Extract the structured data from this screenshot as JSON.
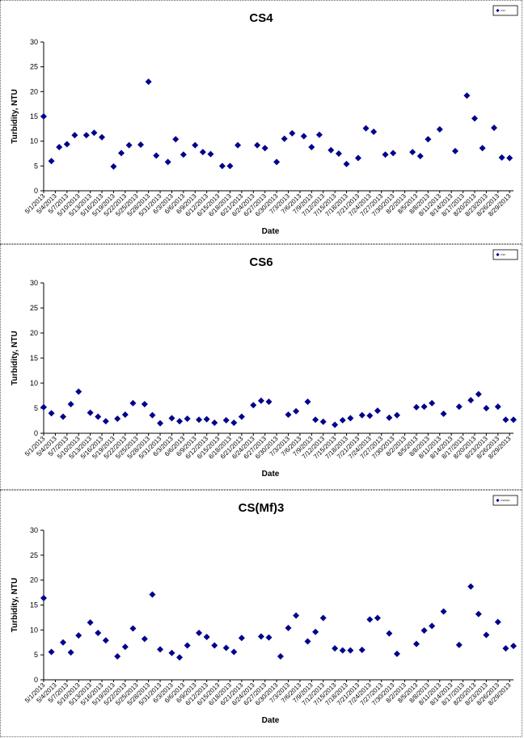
{
  "chart_data": [
    {
      "type": "scatter",
      "title": "CS4",
      "xlabel": "Date",
      "ylabel": "Turbidity, NTU",
      "ylim": [
        0,
        30
      ],
      "yticks": [
        0,
        5,
        10,
        15,
        20,
        25,
        30
      ],
      "xlim": [
        "5/1/2013",
        "8/30/2013"
      ],
      "xticks": [
        "5/1/2013",
        "5/4/2013",
        "5/7/2013",
        "5/10/2013",
        "5/13/2013",
        "5/16/2013",
        "5/19/2013",
        "5/22/2013",
        "5/25/2013",
        "5/28/2013",
        "5/31/2013",
        "6/3/2013",
        "6/6/2013",
        "6/9/2013",
        "6/12/2013",
        "6/15/2013",
        "6/18/2013",
        "6/21/2013",
        "6/24/2013",
        "6/27/2013",
        "6/30/2013",
        "7/3/2013",
        "7/6/2013",
        "7/9/2013",
        "7/12/2013",
        "7/15/2013",
        "7/18/2013",
        "7/21/2013",
        "7/24/2013",
        "7/27/2013",
        "7/30/2013",
        "8/2/2013",
        "8/5/2013",
        "8/8/2013",
        "8/11/2013",
        "8/14/2013",
        "8/17/2013",
        "8/20/2013",
        "8/23/2013",
        "8/26/2013",
        "8/29/2013"
      ],
      "legend": "top-right",
      "grid": false,
      "marker_color": "#00008B",
      "series": [
        {
          "name": "CS4",
          "points": [
            [
              "5/1/2013",
              15.0
            ],
            [
              "5/3/2013",
              6.0
            ],
            [
              "5/5/2013",
              8.8
            ],
            [
              "5/7/2013",
              9.4
            ],
            [
              "5/9/2013",
              11.2
            ],
            [
              "5/12/2013",
              11.2
            ],
            [
              "5/14/2013",
              11.7
            ],
            [
              "5/16/2013",
              10.8
            ],
            [
              "5/19/2013",
              4.9
            ],
            [
              "5/21/2013",
              7.6
            ],
            [
              "5/23/2013",
              9.2
            ],
            [
              "5/26/2013",
              9.3
            ],
            [
              "5/28/2013",
              22.0
            ],
            [
              "5/30/2013",
              7.1
            ],
            [
              "6/2/2013",
              5.8
            ],
            [
              "6/4/2013",
              10.4
            ],
            [
              "6/6/2013",
              7.3
            ],
            [
              "6/9/2013",
              9.2
            ],
            [
              "6/11/2013",
              7.8
            ],
            [
              "6/13/2013",
              7.4
            ],
            [
              "6/16/2013",
              5.0
            ],
            [
              "6/18/2013",
              5.0
            ],
            [
              "6/20/2013",
              9.2
            ],
            [
              "6/25/2013",
              9.2
            ],
            [
              "6/27/2013",
              8.6
            ],
            [
              "6/30/2013",
              5.8
            ],
            [
              "7/2/2013",
              10.5
            ],
            [
              "7/4/2013",
              11.6
            ],
            [
              "7/7/2013",
              11.0
            ],
            [
              "7/9/2013",
              8.8
            ],
            [
              "7/11/2013",
              11.3
            ],
            [
              "7/14/2013",
              8.2
            ],
            [
              "7/16/2013",
              7.5
            ],
            [
              "7/18/2013",
              5.4
            ],
            [
              "7/21/2013",
              6.6
            ],
            [
              "7/23/2013",
              12.6
            ],
            [
              "7/25/2013",
              11.9
            ],
            [
              "7/28/2013",
              7.3
            ],
            [
              "7/30/2013",
              7.6
            ],
            [
              "8/4/2013",
              7.8
            ],
            [
              "8/6/2013",
              7.0
            ],
            [
              "8/8/2013",
              10.4
            ],
            [
              "8/11/2013",
              12.4
            ],
            [
              "8/15/2013",
              8.0
            ],
            [
              "8/18/2013",
              19.2
            ],
            [
              "8/20/2013",
              14.6
            ],
            [
              "8/22/2013",
              8.6
            ],
            [
              "8/25/2013",
              12.7
            ],
            [
              "8/27/2013",
              6.7
            ],
            [
              "8/29/2013",
              6.6
            ]
          ]
        }
      ]
    },
    {
      "type": "scatter",
      "title": "CS6",
      "xlabel": "Date",
      "ylabel": "Turbidity, NTU",
      "ylim": [
        0,
        30
      ],
      "yticks": [
        0,
        5,
        10,
        15,
        20,
        25,
        30
      ],
      "xlim": [
        "5/1/2013",
        "8/30/2013"
      ],
      "xticks": [
        "5/1/2013",
        "5/4/2013",
        "5/7/2013",
        "5/10/2013",
        "5/13/2013",
        "5/16/2013",
        "5/19/2013",
        "5/22/2013",
        "5/25/2013",
        "5/28/2013",
        "5/31/2013",
        "6/3/2013",
        "6/6/2013",
        "6/9/2013",
        "6/12/2013",
        "6/15/2013",
        "6/18/2013",
        "6/21/2013",
        "6/24/2013",
        "6/27/2013",
        "6/30/2013",
        "7/3/2013",
        "7/6/2013",
        "7/9/2013",
        "7/12/2013",
        "7/15/2013",
        "7/18/2013",
        "7/21/2013",
        "7/24/2013",
        "7/27/2013",
        "7/30/2013",
        "8/2/2013",
        "8/5/2013",
        "8/8/2013",
        "8/11/2013",
        "8/14/2013",
        "8/17/2013",
        "8/20/2013",
        "8/23/2013",
        "8/26/2013",
        "8/29/2013"
      ],
      "legend": "top-right",
      "grid": false,
      "marker_color": "#00008B",
      "series": [
        {
          "name": "CS6",
          "points": [
            [
              "5/1/2013",
              5.2
            ],
            [
              "5/3/2013",
              4.0
            ],
            [
              "5/6/2013",
              3.3
            ],
            [
              "5/8/2013",
              5.8
            ],
            [
              "5/10/2013",
              8.3
            ],
            [
              "5/13/2013",
              4.1
            ],
            [
              "5/15/2013",
              3.3
            ],
            [
              "5/17/2013",
              2.4
            ],
            [
              "5/20/2013",
              2.9
            ],
            [
              "5/22/2013",
              3.7
            ],
            [
              "5/24/2013",
              6.0
            ],
            [
              "5/27/2013",
              5.8
            ],
            [
              "5/29/2013",
              3.6
            ],
            [
              "5/31/2013",
              2.0
            ],
            [
              "6/3/2013",
              3.0
            ],
            [
              "6/5/2013",
              2.4
            ],
            [
              "6/7/2013",
              2.9
            ],
            [
              "6/10/2013",
              2.7
            ],
            [
              "6/12/2013",
              2.8
            ],
            [
              "6/14/2013",
              2.1
            ],
            [
              "6/17/2013",
              2.6
            ],
            [
              "6/19/2013",
              2.1
            ],
            [
              "6/21/2013",
              3.3
            ],
            [
              "6/24/2013",
              5.6
            ],
            [
              "6/26/2013",
              6.5
            ],
            [
              "6/28/2013",
              6.3
            ],
            [
              "7/3/2013",
              3.7
            ],
            [
              "7/5/2013",
              4.4
            ],
            [
              "7/8/2013",
              6.3
            ],
            [
              "7/10/2013",
              2.7
            ],
            [
              "7/12/2013",
              2.3
            ],
            [
              "7/15/2013",
              1.7
            ],
            [
              "7/17/2013",
              2.6
            ],
            [
              "7/19/2013",
              3.0
            ],
            [
              "7/22/2013",
              3.6
            ],
            [
              "7/24/2013",
              3.5
            ],
            [
              "7/26/2013",
              4.5
            ],
            [
              "7/29/2013",
              3.1
            ],
            [
              "7/31/2013",
              3.6
            ],
            [
              "8/5/2013",
              5.2
            ],
            [
              "8/7/2013",
              5.3
            ],
            [
              "8/9/2013",
              6.0
            ],
            [
              "8/12/2013",
              3.9
            ],
            [
              "8/16/2013",
              5.3
            ],
            [
              "8/19/2013",
              6.6
            ],
            [
              "8/21/2013",
              7.8
            ],
            [
              "8/23/2013",
              5.0
            ],
            [
              "8/26/2013",
              5.3
            ],
            [
              "8/28/2013",
              2.7
            ],
            [
              "8/30/2013",
              2.7
            ]
          ]
        }
      ]
    },
    {
      "type": "scatter",
      "title": "CS(Mf)3",
      "xlabel": "Date",
      "ylabel": "Turbidity, NTU",
      "ylim": [
        0,
        30
      ],
      "yticks": [
        0,
        5,
        10,
        15,
        20,
        25,
        30
      ],
      "xlim": [
        "5/1/2013",
        "8/30/2013"
      ],
      "xticks": [
        "5/1/2013",
        "5/4/2013",
        "5/7/2013",
        "5/10/2013",
        "5/13/2013",
        "5/16/2013",
        "5/19/2013",
        "5/22/2013",
        "5/25/2013",
        "5/28/2013",
        "5/31/2013",
        "6/3/2013",
        "6/6/2013",
        "6/9/2013",
        "6/12/2013",
        "6/15/2013",
        "6/18/2013",
        "6/21/2013",
        "6/24/2013",
        "6/27/2013",
        "6/30/2013",
        "7/3/2013",
        "7/6/2013",
        "7/9/2013",
        "7/12/2013",
        "7/15/2013",
        "7/18/2013",
        "7/21/2013",
        "7/24/2013",
        "7/27/2013",
        "7/30/2013",
        "8/2/2013",
        "8/5/2013",
        "8/8/2013",
        "8/11/2013",
        "8/14/2013",
        "8/17/2013",
        "8/20/2013",
        "8/23/2013",
        "8/26/2013",
        "8/29/2013"
      ],
      "legend": "top-right",
      "grid": false,
      "marker_color": "#00008B",
      "series": [
        {
          "name": "CS(Mf)3",
          "points": [
            [
              "5/1/2013",
              16.4
            ],
            [
              "5/3/2013",
              5.6
            ],
            [
              "5/6/2013",
              7.5
            ],
            [
              "5/8/2013",
              5.5
            ],
            [
              "5/10/2013",
              8.9
            ],
            [
              "5/13/2013",
              11.5
            ],
            [
              "5/15/2013",
              9.4
            ],
            [
              "5/17/2013",
              7.9
            ],
            [
              "5/20/2013",
              4.7
            ],
            [
              "5/22/2013",
              6.6
            ],
            [
              "5/24/2013",
              10.3
            ],
            [
              "5/27/2013",
              8.2
            ],
            [
              "5/29/2013",
              17.1
            ],
            [
              "5/31/2013",
              6.1
            ],
            [
              "6/3/2013",
              5.4
            ],
            [
              "6/5/2013",
              4.5
            ],
            [
              "6/7/2013",
              6.9
            ],
            [
              "6/10/2013",
              9.4
            ],
            [
              "6/12/2013",
              8.6
            ],
            [
              "6/14/2013",
              6.9
            ],
            [
              "6/17/2013",
              6.4
            ],
            [
              "6/19/2013",
              5.6
            ],
            [
              "6/21/2013",
              8.4
            ],
            [
              "6/26/2013",
              8.7
            ],
            [
              "6/28/2013",
              8.5
            ],
            [
              "7/1/2013",
              4.7
            ],
            [
              "7/3/2013",
              10.4
            ],
            [
              "7/5/2013",
              12.9
            ],
            [
              "7/8/2013",
              7.7
            ],
            [
              "7/10/2013",
              9.6
            ],
            [
              "7/12/2013",
              12.4
            ],
            [
              "7/15/2013",
              6.3
            ],
            [
              "7/17/2013",
              5.9
            ],
            [
              "7/19/2013",
              5.9
            ],
            [
              "7/22/2013",
              6.0
            ],
            [
              "7/24/2013",
              12.1
            ],
            [
              "7/26/2013",
              12.4
            ],
            [
              "7/29/2013",
              9.3
            ],
            [
              "7/31/2013",
              5.2
            ],
            [
              "8/5/2013",
              7.2
            ],
            [
              "8/7/2013",
              9.9
            ],
            [
              "8/9/2013",
              10.8
            ],
            [
              "8/12/2013",
              13.7
            ],
            [
              "8/16/2013",
              7.0
            ],
            [
              "8/19/2013",
              18.7
            ],
            [
              "8/21/2013",
              13.2
            ],
            [
              "8/23/2013",
              9.0
            ],
            [
              "8/26/2013",
              11.6
            ],
            [
              "8/28/2013",
              6.3
            ],
            [
              "8/30/2013",
              6.8
            ]
          ]
        }
      ]
    }
  ]
}
